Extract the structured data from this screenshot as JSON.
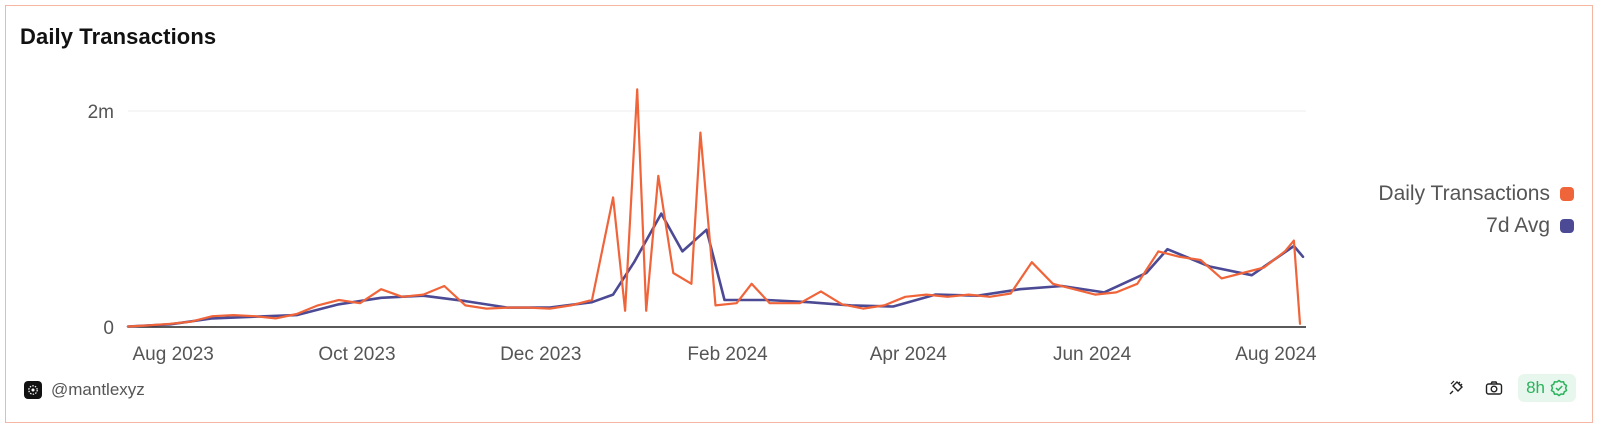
{
  "header": {
    "title": "Daily Transactions"
  },
  "chart_data": {
    "type": "line",
    "title": "Daily Transactions",
    "xlabel": "",
    "ylabel": "",
    "ylim": [
      0,
      2000000
    ],
    "y_ticks": [
      {
        "value": 0,
        "label": "0"
      },
      {
        "value": 2000000,
        "label": "2m"
      }
    ],
    "x_ticks": [
      {
        "date": "2023-08-01",
        "label": "Aug 2023"
      },
      {
        "date": "2023-10-01",
        "label": "Oct 2023"
      },
      {
        "date": "2023-12-01",
        "label": "Dec 2023"
      },
      {
        "date": "2024-02-01",
        "label": "Feb 2024"
      },
      {
        "date": "2024-04-01",
        "label": "Apr 2024"
      },
      {
        "date": "2024-06-01",
        "label": "Jun 2024"
      },
      {
        "date": "2024-08-01",
        "label": "Aug 2024"
      }
    ],
    "x_range": [
      "2023-07-17",
      "2024-08-11"
    ],
    "grid": true,
    "legend_position": "right",
    "series": [
      {
        "name": "Daily Transactions",
        "color": "#f0643a",
        "points": [
          [
            "2023-07-17",
            5000
          ],
          [
            "2023-07-24",
            15000
          ],
          [
            "2023-07-31",
            30000
          ],
          [
            "2023-08-07",
            50000
          ],
          [
            "2023-08-14",
            100000
          ],
          [
            "2023-08-21",
            110000
          ],
          [
            "2023-08-28",
            100000
          ],
          [
            "2023-09-04",
            80000
          ],
          [
            "2023-09-11",
            120000
          ],
          [
            "2023-09-18",
            200000
          ],
          [
            "2023-09-25",
            250000
          ],
          [
            "2023-10-02",
            220000
          ],
          [
            "2023-10-09",
            350000
          ],
          [
            "2023-10-16",
            280000
          ],
          [
            "2023-10-23",
            300000
          ],
          [
            "2023-10-30",
            380000
          ],
          [
            "2023-11-06",
            200000
          ],
          [
            "2023-11-13",
            170000
          ],
          [
            "2023-11-20",
            180000
          ],
          [
            "2023-11-27",
            180000
          ],
          [
            "2023-12-04",
            170000
          ],
          [
            "2023-12-11",
            200000
          ],
          [
            "2023-12-18",
            250000
          ],
          [
            "2023-12-25",
            1200000
          ],
          [
            "2023-12-29",
            150000
          ],
          [
            "2024-01-02",
            2200000
          ],
          [
            "2024-01-05",
            150000
          ],
          [
            "2024-01-09",
            1400000
          ],
          [
            "2024-01-14",
            500000
          ],
          [
            "2024-01-20",
            400000
          ],
          [
            "2024-01-23",
            1800000
          ],
          [
            "2024-01-28",
            200000
          ],
          [
            "2024-02-04",
            220000
          ],
          [
            "2024-02-09",
            400000
          ],
          [
            "2024-02-15",
            220000
          ],
          [
            "2024-02-25",
            220000
          ],
          [
            "2024-03-03",
            330000
          ],
          [
            "2024-03-10",
            210000
          ],
          [
            "2024-03-17",
            170000
          ],
          [
            "2024-03-24",
            200000
          ],
          [
            "2024-03-31",
            280000
          ],
          [
            "2024-04-07",
            300000
          ],
          [
            "2024-04-14",
            280000
          ],
          [
            "2024-04-21",
            300000
          ],
          [
            "2024-04-28",
            280000
          ],
          [
            "2024-05-05",
            310000
          ],
          [
            "2024-05-12",
            600000
          ],
          [
            "2024-05-19",
            400000
          ],
          [
            "2024-05-26",
            350000
          ],
          [
            "2024-06-02",
            300000
          ],
          [
            "2024-06-09",
            320000
          ],
          [
            "2024-06-16",
            400000
          ],
          [
            "2024-06-23",
            700000
          ],
          [
            "2024-06-30",
            650000
          ],
          [
            "2024-07-07",
            620000
          ],
          [
            "2024-07-14",
            450000
          ],
          [
            "2024-07-21",
            500000
          ],
          [
            "2024-07-28",
            550000
          ],
          [
            "2024-08-04",
            700000
          ],
          [
            "2024-08-07",
            800000
          ],
          [
            "2024-08-09",
            30000
          ]
        ]
      },
      {
        "name": "7d Avg",
        "color": "#4c4a94",
        "points": [
          [
            "2023-07-17",
            5000
          ],
          [
            "2023-07-31",
            25000
          ],
          [
            "2023-08-14",
            80000
          ],
          [
            "2023-08-28",
            95000
          ],
          [
            "2023-09-11",
            110000
          ],
          [
            "2023-09-25",
            210000
          ],
          [
            "2023-10-09",
            270000
          ],
          [
            "2023-10-23",
            290000
          ],
          [
            "2023-11-06",
            240000
          ],
          [
            "2023-11-20",
            180000
          ],
          [
            "2023-12-04",
            180000
          ],
          [
            "2023-12-18",
            230000
          ],
          [
            "2023-12-25",
            300000
          ],
          [
            "2024-01-01",
            600000
          ],
          [
            "2024-01-10",
            1050000
          ],
          [
            "2024-01-17",
            700000
          ],
          [
            "2024-01-25",
            900000
          ],
          [
            "2024-01-31",
            250000
          ],
          [
            "2024-02-14",
            250000
          ],
          [
            "2024-02-28",
            230000
          ],
          [
            "2024-03-13",
            200000
          ],
          [
            "2024-03-27",
            190000
          ],
          [
            "2024-04-10",
            300000
          ],
          [
            "2024-04-24",
            290000
          ],
          [
            "2024-05-08",
            350000
          ],
          [
            "2024-05-22",
            380000
          ],
          [
            "2024-06-05",
            320000
          ],
          [
            "2024-06-19",
            500000
          ],
          [
            "2024-06-26",
            720000
          ],
          [
            "2024-07-10",
            560000
          ],
          [
            "2024-07-24",
            480000
          ],
          [
            "2024-08-07",
            750000
          ],
          [
            "2024-08-10",
            650000
          ]
        ]
      }
    ]
  },
  "footer": {
    "handle": "@mantlexyz",
    "refresh_label": "8h"
  },
  "icons": [
    "mantle-logo-icon",
    "plug-icon",
    "camera-icon",
    "check-circle-icon"
  ]
}
